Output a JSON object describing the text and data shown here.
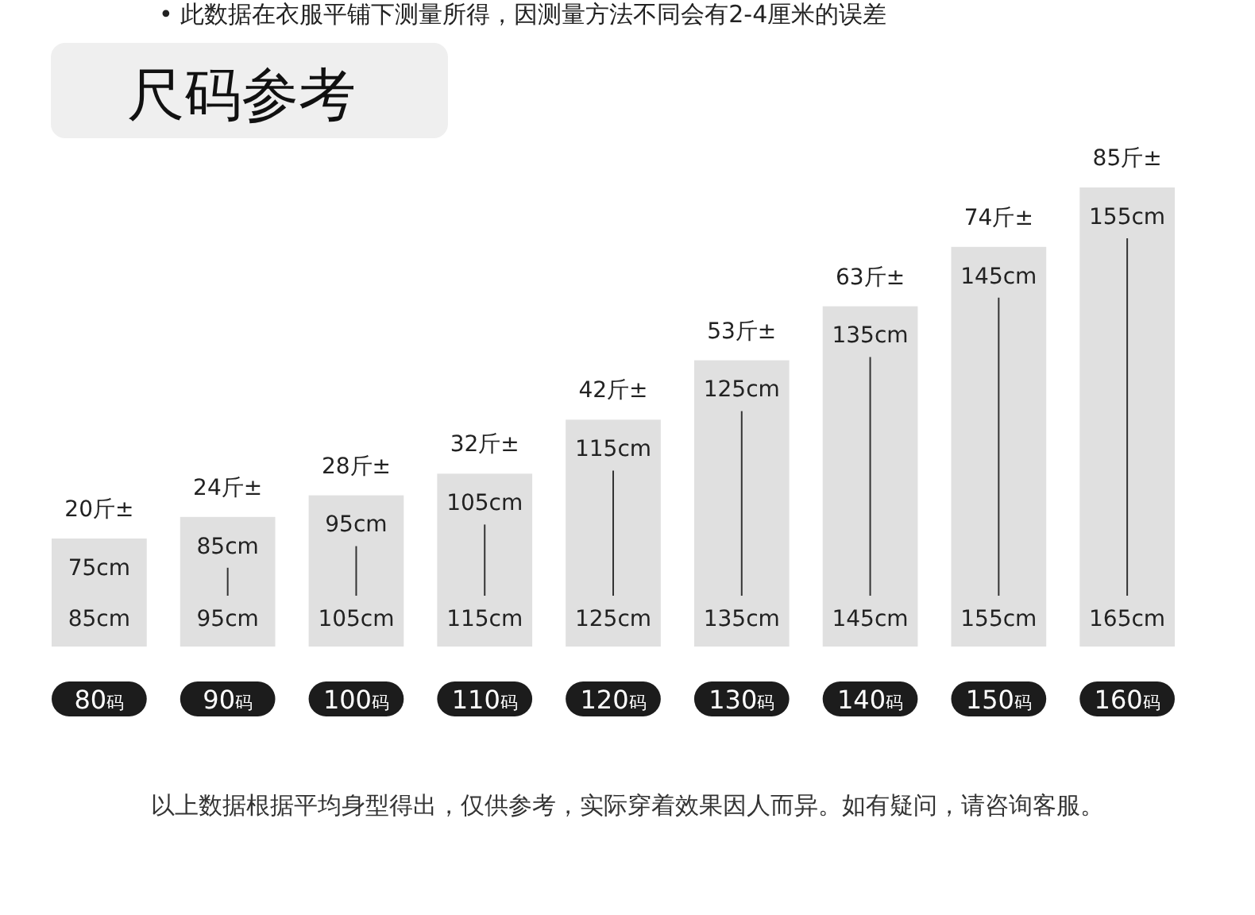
{
  "chart_data": {
    "type": "bar",
    "title": "尺码参考",
    "color": "#e0e0e0",
    "categories": [
      "80码",
      "90码",
      "100码",
      "110码",
      "120码",
      "130码",
      "140码",
      "150码",
      "160码"
    ],
    "values": [
      20,
      24,
      28,
      32,
      42,
      53,
      63,
      74,
      85
    ],
    "value_labels": [
      "20斤±",
      "24斤±",
      "28斤±",
      "32斤±",
      "42斤±",
      "53斤±",
      "63斤±",
      "74斤±",
      "85斤±"
    ],
    "annotations": [
      "• 此数据在衣服平铺下测量所得，因测量方法不同会有2-4厘米的误差",
      "以上数据根据平均身型得出，仅供参考，实际穿着效果因人而异。如有疑问，请咨询客服。",
      "75cm",
      "85cm",
      "85cm",
      "95cm",
      "95cm",
      "105cm",
      "105cm",
      "115cm",
      "115cm",
      "125cm",
      "125cm",
      "135cm",
      "135cm",
      "145cm",
      "145cm",
      "155cm",
      "155cm",
      "165cm"
    ]
  }
}
